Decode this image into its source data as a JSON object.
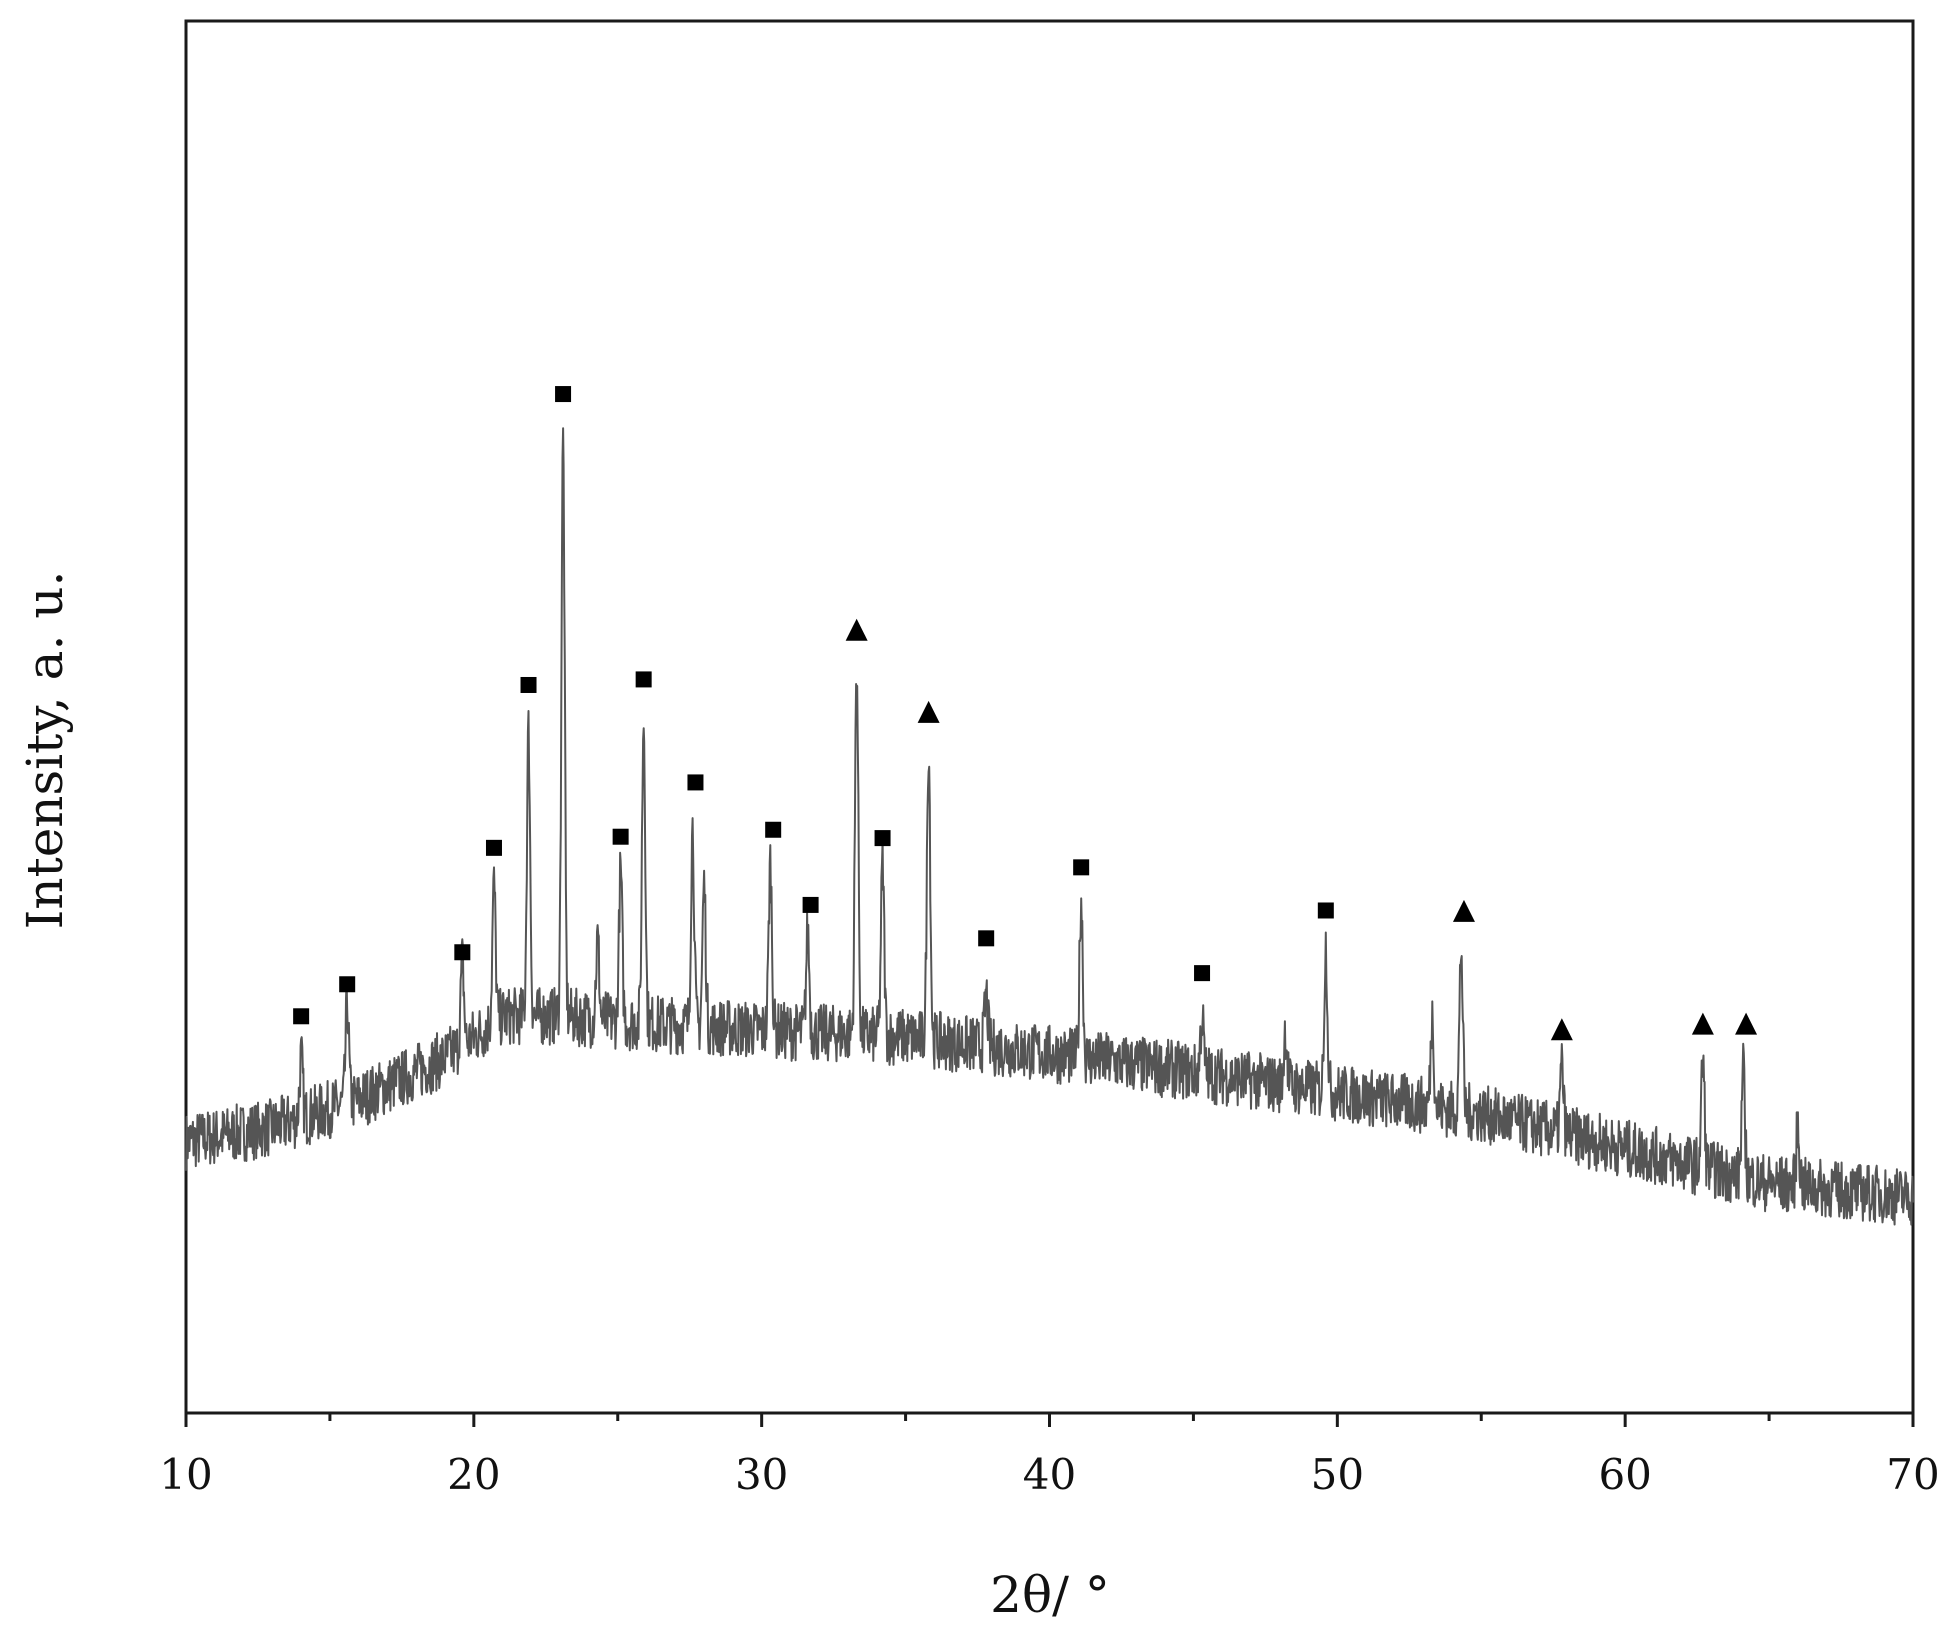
{
  "chart_data": {
    "type": "line",
    "title": "",
    "xlabel": "2θ/ °",
    "ylabel": "Intensity, a. u.",
    "xlim": [
      10,
      70
    ],
    "ylim": [
      0,
      100
    ],
    "x_ticks_major": [
      10,
      20,
      30,
      40,
      50,
      60,
      70
    ],
    "x_ticks_minor": [
      15,
      25,
      35,
      45,
      55,
      65
    ],
    "y_tick_labels": "none",
    "grid": false,
    "legend": "none",
    "series": [
      {
        "color": "#555555",
        "baseline": [
          [
            10,
            19.5
          ],
          [
            13,
            20.5
          ],
          [
            16,
            22.5
          ],
          [
            19,
            25.5
          ],
          [
            21,
            28.5
          ],
          [
            23,
            28.5
          ],
          [
            26,
            28.0
          ],
          [
            30,
            27.5
          ],
          [
            35,
            27.0
          ],
          [
            40,
            25.8
          ],
          [
            45,
            24.5
          ],
          [
            50,
            23.0
          ],
          [
            55,
            21.5
          ],
          [
            60,
            19.0
          ],
          [
            65,
            16.5
          ],
          [
            70,
            15.5
          ]
        ],
        "peaks": [
          {
            "x": 14.0,
            "y": 25.5
          },
          {
            "x": 15.6,
            "y": 29.5
          },
          {
            "x": 19.6,
            "y": 32.5
          },
          {
            "x": 20.7,
            "y": 38.0
          },
          {
            "x": 21.9,
            "y": 49.0
          },
          {
            "x": 23.1,
            "y": 70.0
          },
          {
            "x": 24.3,
            "y": 34.0
          },
          {
            "x": 25.1,
            "y": 39.0
          },
          {
            "x": 25.9,
            "y": 50.0
          },
          {
            "x": 27.6,
            "y": 42.0
          },
          {
            "x": 28.0,
            "y": 38.0
          },
          {
            "x": 30.3,
            "y": 39.5
          },
          {
            "x": 31.6,
            "y": 34.5
          },
          {
            "x": 33.3,
            "y": 54.0
          },
          {
            "x": 34.2,
            "y": 39.5
          },
          {
            "x": 35.8,
            "y": 48.0
          },
          {
            "x": 37.8,
            "y": 30.0
          },
          {
            "x": 41.1,
            "y": 37.0
          },
          {
            "x": 45.3,
            "y": 28.5
          },
          {
            "x": 48.2,
            "y": 27.5
          },
          {
            "x": 49.6,
            "y": 33.5
          },
          {
            "x": 53.3,
            "y": 28.5
          },
          {
            "x": 54.3,
            "y": 33.5
          },
          {
            "x": 57.8,
            "y": 25.0
          },
          {
            "x": 62.7,
            "y": 25.5
          },
          {
            "x": 64.1,
            "y": 24.5
          },
          {
            "x": 66.0,
            "y": 20.5
          }
        ]
      }
    ],
    "annotations": [
      {
        "marker": "square",
        "x": 14.0,
        "y": 28.5
      },
      {
        "marker": "square",
        "x": 15.6,
        "y": 30.8
      },
      {
        "marker": "square",
        "x": 19.6,
        "y": 33.1
      },
      {
        "marker": "square",
        "x": 20.7,
        "y": 40.6
      },
      {
        "marker": "square",
        "x": 21.9,
        "y": 52.3
      },
      {
        "marker": "square",
        "x": 23.1,
        "y": 73.2
      },
      {
        "marker": "square",
        "x": 25.1,
        "y": 41.4
      },
      {
        "marker": "square",
        "x": 25.9,
        "y": 52.7
      },
      {
        "marker": "square",
        "x": 27.7,
        "y": 45.3
      },
      {
        "marker": "square",
        "x": 30.4,
        "y": 41.9
      },
      {
        "marker": "square",
        "x": 31.7,
        "y": 36.5
      },
      {
        "marker": "triangle",
        "x": 33.3,
        "y": 56.2
      },
      {
        "marker": "square",
        "x": 34.2,
        "y": 41.3
      },
      {
        "marker": "triangle",
        "x": 35.8,
        "y": 50.3
      },
      {
        "marker": "square",
        "x": 37.8,
        "y": 34.1
      },
      {
        "marker": "square",
        "x": 41.1,
        "y": 39.2
      },
      {
        "marker": "square",
        "x": 45.3,
        "y": 31.6
      },
      {
        "marker": "square",
        "x": 49.6,
        "y": 36.1
      },
      {
        "marker": "triangle",
        "x": 54.4,
        "y": 36.0
      },
      {
        "marker": "triangle",
        "x": 57.8,
        "y": 27.5
      },
      {
        "marker": "triangle",
        "x": 62.7,
        "y": 27.9
      },
      {
        "marker": "triangle",
        "x": 64.2,
        "y": 27.9
      }
    ]
  }
}
